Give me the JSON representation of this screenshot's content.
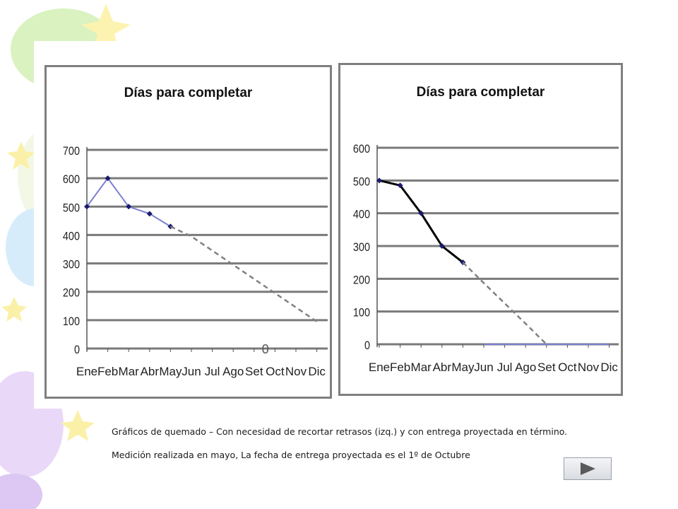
{
  "chart_data": [
    {
      "type": "line",
      "title": "Días para completar",
      "xlabel": "",
      "ylabel": "",
      "categories": [
        "Ene",
        "Feb",
        "Mar",
        "Abr",
        "May",
        "Jun",
        "Jul",
        "Ago",
        "Set",
        "Oct",
        "Nov",
        "Dic"
      ],
      "ylim": [
        0,
        700
      ],
      "yticks": [
        0,
        100,
        200,
        300,
        400,
        500,
        600,
        700
      ],
      "grid": true,
      "legend": "none",
      "series": [
        {
          "values": [
            500,
            600,
            500,
            475,
            430,
            null,
            null,
            null,
            null,
            null,
            null,
            null
          ],
          "color": "#7b7fd0",
          "marker": "diamond",
          "style": "solid"
        },
        {
          "values": [
            null,
            null,
            null,
            null,
            430,
            395,
            345,
            295,
            245,
            195,
            145,
            95
          ],
          "color": "#808080",
          "style": "dashed"
        }
      ],
      "annotations": [
        {
          "text": "0",
          "x": "Set",
          "y": 0
        }
      ]
    },
    {
      "type": "line",
      "title": "Días para completar",
      "xlabel": "",
      "ylabel": "",
      "categories": [
        "Ene",
        "Feb",
        "Mar",
        "Abr",
        "May",
        "Jun",
        "Jul",
        "Ago",
        "Set",
        "Oct",
        "Nov",
        "Dic"
      ],
      "ylim": [
        0,
        600
      ],
      "yticks": [
        0,
        100,
        200,
        300,
        400,
        500,
        600
      ],
      "grid": true,
      "legend": "none",
      "series": [
        {
          "values": [
            500,
            485,
            400,
            300,
            250,
            null,
            null,
            null,
            null,
            null,
            null,
            null
          ],
          "color": "#000000",
          "marker": "diamond",
          "style": "solid"
        },
        {
          "values": [
            null,
            null,
            null,
            null,
            250,
            187,
            125,
            63,
            0,
            null,
            null,
            null
          ],
          "color": "#808080",
          "style": "dashed"
        },
        {
          "values": [
            null,
            null,
            null,
            null,
            null,
            0,
            0,
            0,
            0,
            0,
            0,
            0
          ],
          "color": "#7b7fd0",
          "style": "solid"
        }
      ]
    }
  ],
  "captions": [
    "Gráficos de quemado – Con necesidad de recortar retrasos (izq.) y con entrega proyectada en término.",
    "Medición realizada en mayo, La fecha de entrega proyectada es el 1º de Octubre"
  ],
  "navigation": {
    "next_icon": "play-right-icon"
  }
}
